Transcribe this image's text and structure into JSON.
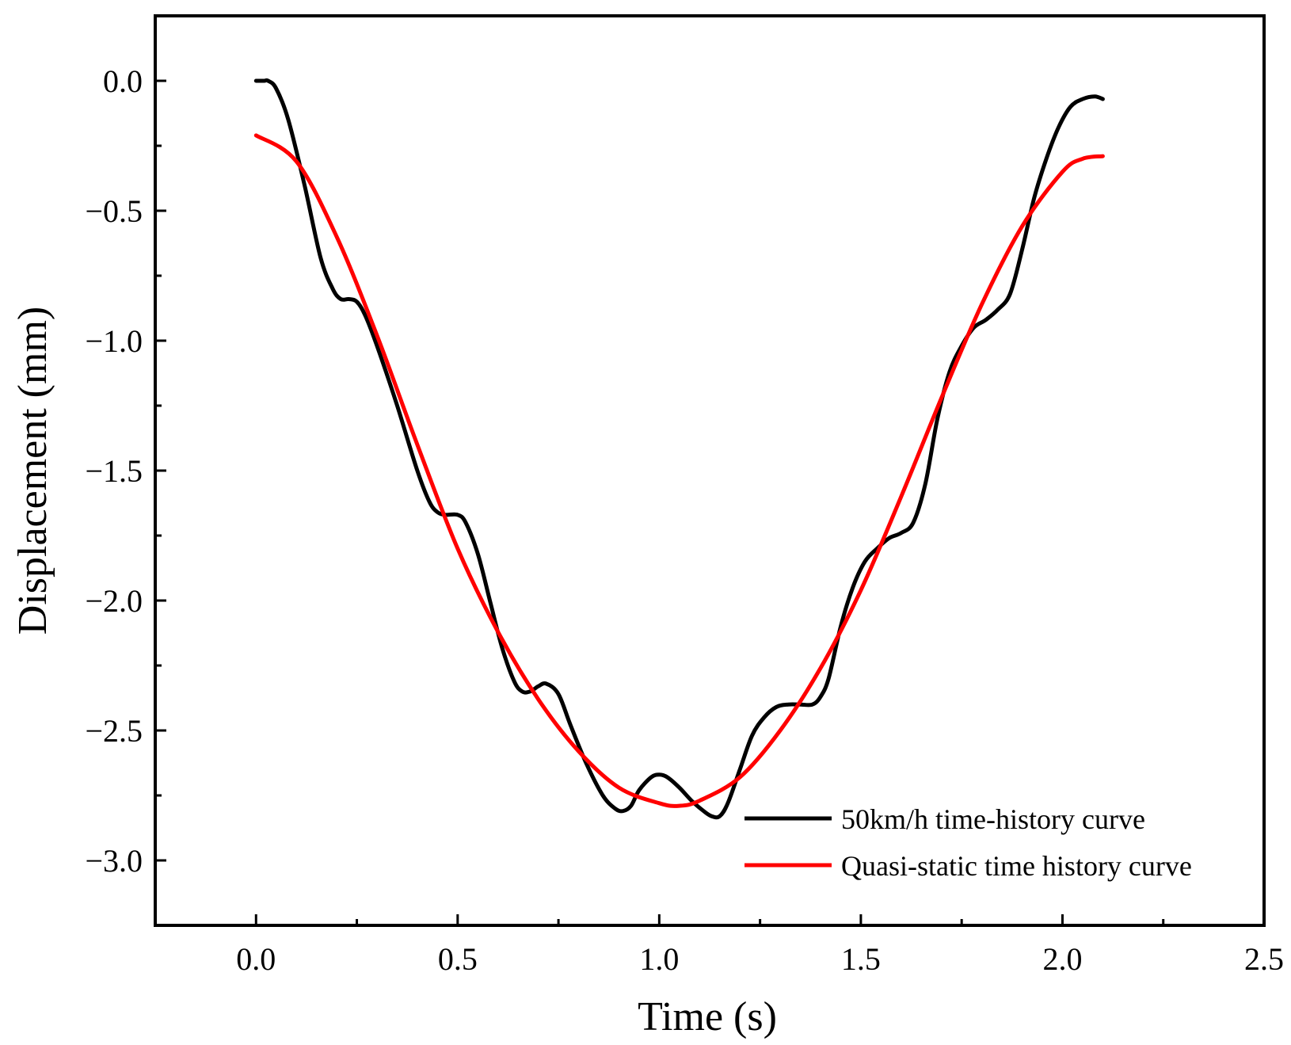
{
  "chart_data": {
    "type": "line",
    "title": "",
    "xlabel": "Time (s)",
    "ylabel": "Displacement (mm)",
    "xlim": [
      -0.25,
      2.5
    ],
    "ylim": [
      -3.25,
      0.25
    ],
    "x_ticks": [
      0.0,
      0.5,
      1.0,
      1.5,
      2.0,
      2.5
    ],
    "x_tick_labels": [
      "0.0",
      "0.5",
      "1.0",
      "1.5",
      "2.0",
      "2.5"
    ],
    "y_ticks": [
      0.0,
      -0.5,
      -1.0,
      -1.5,
      -2.0,
      -2.5,
      -3.0
    ],
    "y_tick_labels": [
      "0.0",
      "−0.5",
      "−1.0",
      "−1.5",
      "−2.0",
      "−2.5",
      "−3.0"
    ],
    "grid": false,
    "legend_position": "bottom-right",
    "series": [
      {
        "name": "50km/h time-history curve",
        "color": "#000000",
        "x": [
          0.0,
          0.02,
          0.03,
          0.05,
          0.08,
          0.12,
          0.16,
          0.19,
          0.21,
          0.23,
          0.25,
          0.27,
          0.3,
          0.35,
          0.4,
          0.43,
          0.45,
          0.47,
          0.5,
          0.52,
          0.55,
          0.58,
          0.61,
          0.64,
          0.66,
          0.68,
          0.7,
          0.72,
          0.75,
          0.78,
          0.82,
          0.86,
          0.89,
          0.91,
          0.93,
          0.95,
          0.98,
          1.0,
          1.02,
          1.05,
          1.08,
          1.11,
          1.13,
          1.15,
          1.17,
          1.2,
          1.23,
          1.26,
          1.29,
          1.32,
          1.35,
          1.38,
          1.4,
          1.42,
          1.45,
          1.48,
          1.51,
          1.54,
          1.57,
          1.6,
          1.63,
          1.66,
          1.69,
          1.72,
          1.75,
          1.78,
          1.81,
          1.84,
          1.87,
          1.9,
          1.93,
          1.96,
          1.99,
          2.02,
          2.05,
          2.08,
          2.1
        ],
        "values": [
          0.0,
          0.0,
          0.0,
          -0.03,
          -0.15,
          -0.4,
          -0.68,
          -0.8,
          -0.84,
          -0.84,
          -0.85,
          -0.9,
          -1.02,
          -1.25,
          -1.5,
          -1.62,
          -1.66,
          -1.67,
          -1.67,
          -1.7,
          -1.82,
          -2.0,
          -2.18,
          -2.31,
          -2.35,
          -2.35,
          -2.33,
          -2.32,
          -2.36,
          -2.48,
          -2.63,
          -2.75,
          -2.8,
          -2.81,
          -2.79,
          -2.73,
          -2.68,
          -2.67,
          -2.68,
          -2.72,
          -2.77,
          -2.81,
          -2.83,
          -2.83,
          -2.78,
          -2.65,
          -2.52,
          -2.45,
          -2.41,
          -2.4,
          -2.4,
          -2.4,
          -2.37,
          -2.3,
          -2.1,
          -1.95,
          -1.85,
          -1.8,
          -1.76,
          -1.74,
          -1.7,
          -1.55,
          -1.3,
          -1.12,
          -1.02,
          -0.95,
          -0.92,
          -0.88,
          -0.82,
          -0.65,
          -0.45,
          -0.3,
          -0.18,
          -0.1,
          -0.07,
          -0.06,
          -0.07
        ]
      },
      {
        "name": "Quasi-static time history curve",
        "color": "#ff0000",
        "x": [
          0.0,
          0.1,
          0.2,
          0.3,
          0.4,
          0.5,
          0.6,
          0.7,
          0.8,
          0.9,
          1.0,
          1.05,
          1.1,
          1.2,
          1.3,
          1.4,
          1.5,
          1.6,
          1.7,
          1.8,
          1.9,
          2.0,
          2.05,
          2.1
        ],
        "values": [
          -0.21,
          -0.31,
          -0.6,
          -0.98,
          -1.4,
          -1.8,
          -2.12,
          -2.38,
          -2.58,
          -2.72,
          -2.78,
          -2.79,
          -2.77,
          -2.68,
          -2.5,
          -2.26,
          -1.96,
          -1.6,
          -1.22,
          -0.86,
          -0.56,
          -0.35,
          -0.3,
          -0.29
        ]
      }
    ]
  }
}
